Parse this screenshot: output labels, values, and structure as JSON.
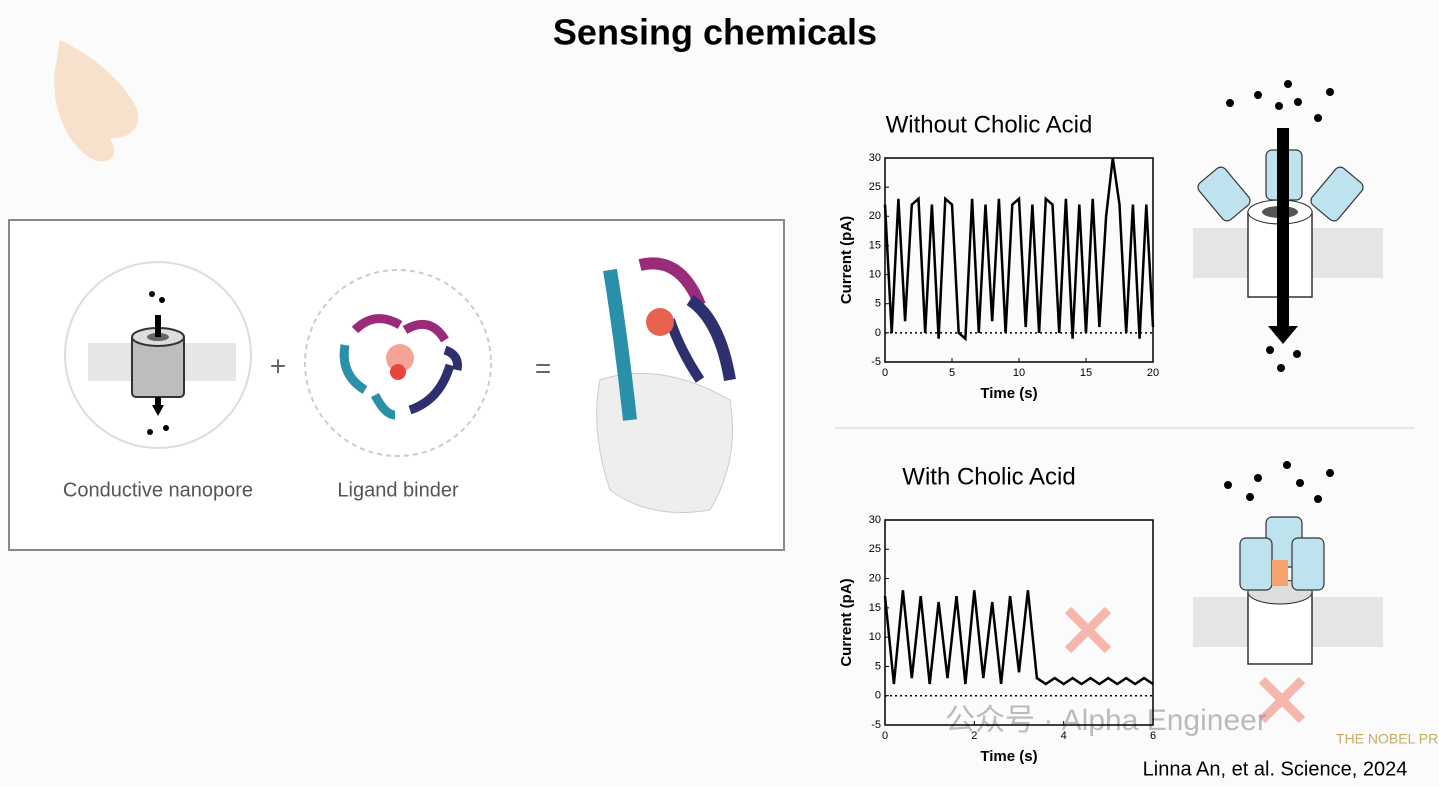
{
  "title": "Sensing chemicals",
  "panel": {
    "nanopore_label": "Conductive nanopore",
    "plus": "+",
    "binder_label": "Ligand binder",
    "equals": "="
  },
  "chart_data": [
    {
      "type": "line",
      "title": "Without Cholic Acid",
      "x_label": "Time (s)",
      "y_label": "Current (pA)",
      "xlim": [
        0,
        20
      ],
      "xticks": [
        0,
        5,
        10,
        15,
        20
      ],
      "ylim": [
        -5,
        30
      ],
      "yticks": [
        -5,
        0,
        5,
        10,
        15,
        20,
        25,
        30
      ],
      "series": [
        {
          "color": "#000000",
          "x": [
            0,
            0.5,
            1,
            1.5,
            2,
            2.5,
            3,
            3.5,
            4,
            4.5,
            5,
            5.5,
            6,
            6.5,
            7,
            7.5,
            8,
            8.5,
            9,
            9.5,
            10,
            10.5,
            11,
            11.5,
            12,
            12.5,
            13,
            13.5,
            14,
            14.5,
            15,
            15.5,
            16,
            16.5,
            17,
            17.5,
            18,
            18.5,
            19,
            19.5,
            20
          ],
          "values": [
            22,
            0,
            23,
            2,
            22,
            23,
            0,
            22,
            -1,
            23,
            22,
            0,
            -1,
            23,
            0,
            22,
            2,
            23,
            0,
            22,
            23,
            1,
            22,
            0,
            23,
            22,
            0,
            23,
            -1,
            22,
            0,
            23,
            1,
            20,
            30,
            22,
            0,
            22,
            -1,
            22,
            1
          ]
        }
      ]
    },
    {
      "type": "line",
      "title": "With Cholic Acid",
      "x_label": "Time (s)",
      "y_label": "Current (pA)",
      "xlim": [
        0,
        6
      ],
      "xticks": [
        0,
        2,
        4,
        6
      ],
      "ylim": [
        -5,
        30
      ],
      "yticks": [
        -5,
        0,
        5,
        10,
        15,
        20,
        25,
        30
      ],
      "series": [
        {
          "color": "#000000",
          "x": [
            0,
            0.2,
            0.4,
            0.6,
            0.8,
            1,
            1.2,
            1.4,
            1.6,
            1.8,
            2,
            2.2,
            2.4,
            2.6,
            2.8,
            3,
            3.2,
            3.4,
            3.6,
            3.8,
            4,
            4.2,
            4.4,
            4.6,
            4.8,
            5,
            5.2,
            5.4,
            5.6,
            5.8,
            6
          ],
          "values": [
            17,
            2,
            18,
            3,
            17,
            2,
            16,
            3,
            17,
            2,
            18,
            3,
            16,
            2,
            17,
            4,
            18,
            3,
            2,
            3,
            2,
            3,
            2,
            3,
            2,
            3,
            2,
            3,
            2,
            3,
            2
          ]
        }
      ]
    }
  ],
  "citation": "Linna An, et al. Science, 2024",
  "watermark": "公众号 · Alpha Engineer",
  "logo": "THE NOBEL PRIZE"
}
